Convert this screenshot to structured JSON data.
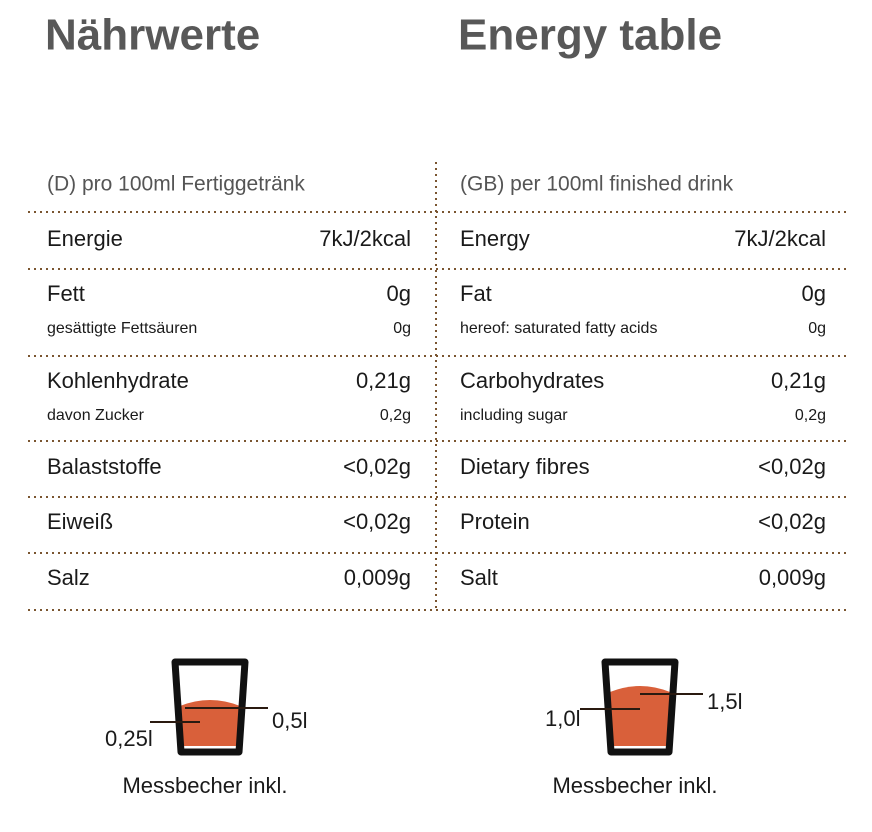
{
  "columns": [
    {
      "title": "Nährwerte",
      "header": "(D) pro 100ml Fertiggetränk",
      "rows": [
        {
          "name": "Energie",
          "value": "7kJ/2kcal"
        },
        {
          "name": "Fett",
          "value": "0g",
          "sub": {
            "name": "gesättigte Fettsäuren",
            "value": "0g"
          }
        },
        {
          "name": "Kohlenhydrate",
          "value": "0,21g",
          "sub": {
            "name": "davon Zucker",
            "value": "0,2g"
          }
        },
        {
          "name": "Balaststoffe",
          "value": "<0,02g"
        },
        {
          "name": "Eiweiß",
          "value": "<0,02g"
        },
        {
          "name": "Salz",
          "value": "0,009g"
        }
      ]
    },
    {
      "title": "Energy table",
      "header": "(GB) per 100ml finished drink",
      "rows": [
        {
          "name": "Energy",
          "value": "7kJ/2kcal"
        },
        {
          "name": "Fat",
          "value": "0g",
          "sub": {
            "name": "hereof: saturated fatty acids",
            "value": "0g"
          }
        },
        {
          "name": "Carbohydrates",
          "value": "0,21g",
          "sub": {
            "name": "including sugar",
            "value": "0,2g"
          }
        },
        {
          "name": "Dietary fibres",
          "value": "<0,02g"
        },
        {
          "name": "Protein",
          "value": "<0,02g"
        },
        {
          "name": "Salt",
          "value": "0,009g"
        }
      ]
    }
  ],
  "cups": [
    {
      "low_label": "0,25l",
      "high_label": "0,5l",
      "caption": "Messbecher inkl."
    },
    {
      "low_label": "1,0l",
      "high_label": "1,5l",
      "caption": "Messbecher inkl."
    }
  ]
}
